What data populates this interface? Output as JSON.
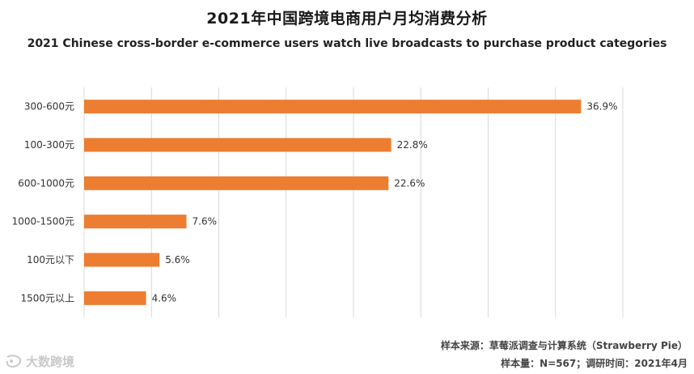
{
  "title": "2021年中国跨境电商用户月均消费分析",
  "subtitle": "2021 Chinese cross-border e-commerce users watch live broadcasts to purchase product categories",
  "source_line": "样本来源：草莓派调查与计算系统（Strawberry Pie）",
  "sample_line": "样本量：N=567；调研时间：2021年4月",
  "watermark": "大数跨境",
  "colors": {
    "bar": "#ED7D31",
    "grid": "#d9d9d9",
    "label": "#333333"
  },
  "chart_data": {
    "type": "bar",
    "orientation": "horizontal",
    "categories": [
      "300-600元",
      "100-300元",
      "600-1000元",
      "1000-1500元",
      "100元以下",
      "1500元以上"
    ],
    "values": [
      36.9,
      22.8,
      22.6,
      7.6,
      5.6,
      4.6
    ],
    "value_labels": [
      "36.9%",
      "22.8%",
      "22.6%",
      "7.6%",
      "5.6%",
      "4.6%"
    ],
    "unit": "%",
    "xlim": [
      0,
      40
    ],
    "grid": true
  }
}
